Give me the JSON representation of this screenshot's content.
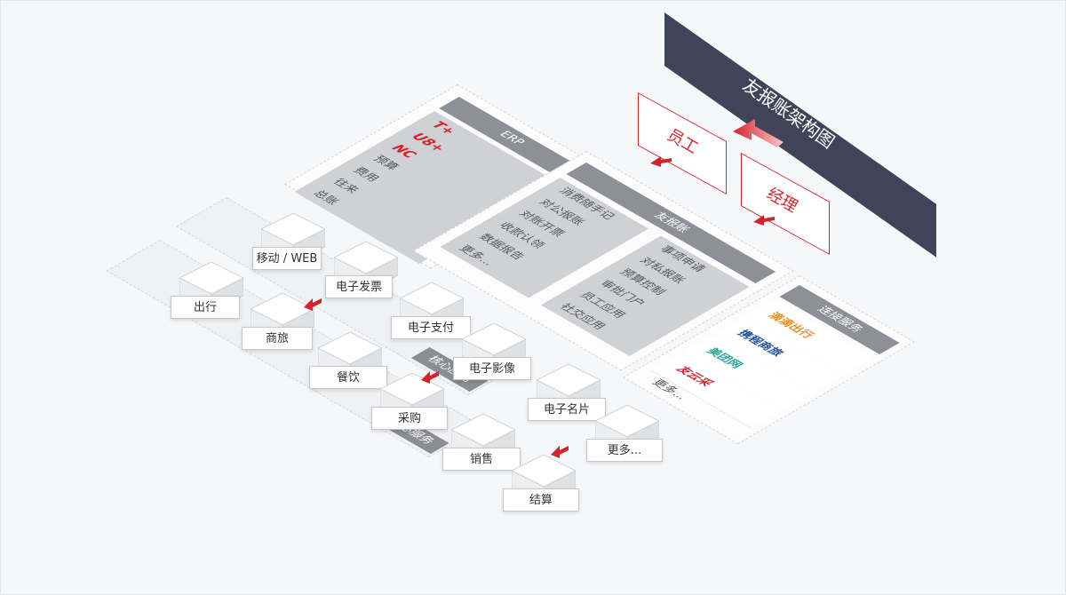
{
  "title": "友报账架构图",
  "roles": {
    "employee": "员工",
    "manager": "经理"
  },
  "erp": {
    "header": "ERP",
    "items": [
      "T+",
      "U8+",
      "NC",
      "预算",
      "费用",
      "往来",
      "总账"
    ]
  },
  "youbaozhang": {
    "header": "友报账",
    "left": [
      "消费随手记",
      "对公报账",
      "对账开票",
      "收款认领",
      "数据报告",
      "更多..."
    ],
    "right": [
      "事项申请",
      "对私报账",
      "预算控制",
      "审批门户",
      "员工应用",
      "社交应用"
    ]
  },
  "connect": {
    "header": "连接服务",
    "items": [
      "滴滴出行",
      "携程商旅",
      "美团网",
      "友云采",
      "更多..."
    ]
  },
  "core_apps": {
    "tag": "核心应用",
    "items": [
      "移动 / WEB",
      "电子发票",
      "电子支付",
      "电子影像",
      "电子名片",
      "更多..."
    ]
  },
  "core_services": {
    "tag": "核心服务",
    "items": [
      "出行",
      "商旅",
      "餐饮",
      "采购",
      "销售",
      "结算"
    ]
  },
  "colors": {
    "accent": "#d6232a",
    "banner": "#3f4459",
    "header_gray": "#8d9096",
    "row_gray": "#cfd1d4"
  }
}
